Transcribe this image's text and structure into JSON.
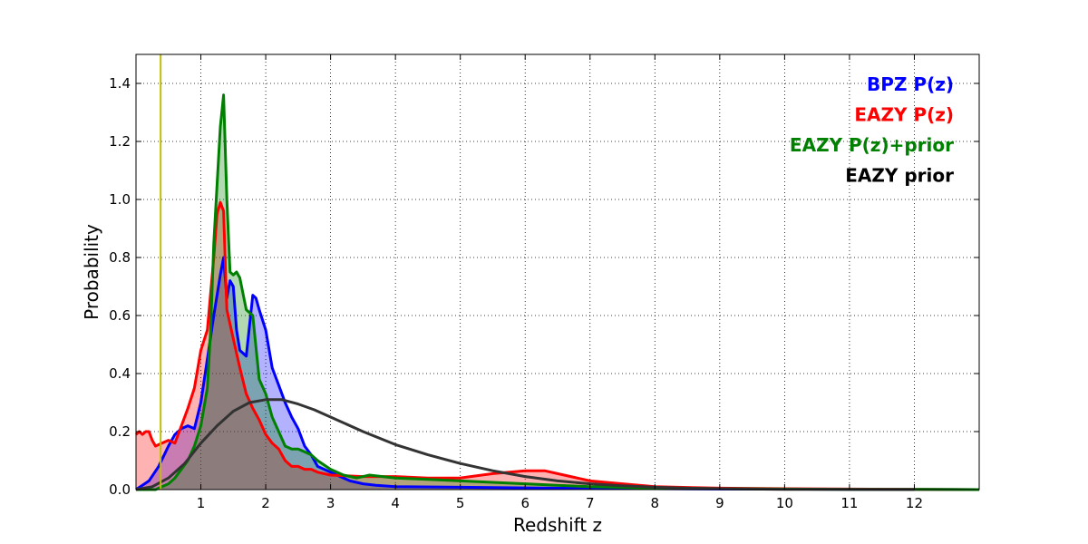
{
  "chart_data": {
    "type": "area",
    "xlabel": "Redshift z",
    "ylabel": "Probability",
    "xlim": [
      0,
      13
    ],
    "ylim": [
      0,
      1.5
    ],
    "x_ticks": [
      "1",
      "2",
      "3",
      "4",
      "5",
      "6",
      "7",
      "8",
      "9",
      "10",
      "11",
      "12"
    ],
    "y_ticks": [
      "0.0",
      "0.2",
      "0.4",
      "0.6",
      "0.8",
      "1.0",
      "1.2",
      "1.4"
    ],
    "grid": true,
    "legend_position": "top-right",
    "reference_line": {
      "x": 0.38,
      "color": "#bfbf00"
    },
    "series": [
      {
        "name": "BPZ P(z)",
        "color": "#0000ff",
        "fill": "#0000ff",
        "filled": true,
        "x": [
          0,
          0.2,
          0.35,
          0.5,
          0.6,
          0.7,
          0.8,
          0.9,
          1.0,
          1.1,
          1.2,
          1.3,
          1.35,
          1.4,
          1.45,
          1.5,
          1.55,
          1.6,
          1.7,
          1.8,
          1.85,
          1.9,
          2.0,
          2.1,
          2.2,
          2.3,
          2.4,
          2.5,
          2.6,
          2.7,
          2.8,
          2.9,
          3.0,
          3.1,
          3.2,
          3.3,
          3.5,
          3.7,
          4.0,
          5.0,
          6.0,
          7.0,
          8.0,
          9.0,
          10.0,
          11.0,
          12.0,
          13.0
        ],
        "y": [
          0,
          0.03,
          0.08,
          0.15,
          0.19,
          0.21,
          0.22,
          0.21,
          0.3,
          0.45,
          0.6,
          0.74,
          0.8,
          0.66,
          0.72,
          0.7,
          0.55,
          0.48,
          0.46,
          0.67,
          0.66,
          0.62,
          0.55,
          0.42,
          0.36,
          0.3,
          0.25,
          0.21,
          0.15,
          0.12,
          0.08,
          0.07,
          0.06,
          0.05,
          0.04,
          0.03,
          0.02,
          0.015,
          0.01,
          0.008,
          0.006,
          0.004,
          0.003,
          0.002,
          0.002,
          0.001,
          0.001,
          0.0
        ]
      },
      {
        "name": "EAZY P(z)",
        "color": "#ff0000",
        "fill": "#ff0000",
        "filled": true,
        "x": [
          0,
          0.05,
          0.1,
          0.15,
          0.2,
          0.25,
          0.3,
          0.4,
          0.5,
          0.6,
          0.7,
          0.8,
          0.9,
          1.0,
          1.1,
          1.2,
          1.25,
          1.3,
          1.35,
          1.4,
          1.5,
          1.6,
          1.7,
          1.8,
          1.9,
          2.0,
          2.1,
          2.2,
          2.3,
          2.4,
          2.5,
          2.6,
          2.7,
          2.8,
          3.0,
          3.5,
          4.0,
          4.5,
          5.0,
          5.5,
          6.0,
          6.3,
          6.6,
          7.0,
          7.5,
          8.0,
          9.0,
          10.0,
          11.0,
          12.0,
          13.0
        ],
        "y": [
          0.19,
          0.2,
          0.19,
          0.2,
          0.2,
          0.17,
          0.15,
          0.16,
          0.17,
          0.16,
          0.22,
          0.28,
          0.35,
          0.48,
          0.55,
          0.8,
          0.95,
          0.99,
          0.96,
          0.62,
          0.52,
          0.42,
          0.33,
          0.28,
          0.24,
          0.19,
          0.16,
          0.14,
          0.1,
          0.08,
          0.08,
          0.07,
          0.07,
          0.06,
          0.05,
          0.045,
          0.045,
          0.04,
          0.04,
          0.055,
          0.065,
          0.065,
          0.05,
          0.03,
          0.02,
          0.01,
          0.005,
          0.003,
          0.002,
          0.001,
          0.0
        ]
      },
      {
        "name": "EAZY P(z)+prior",
        "color": "#008000",
        "fill": "#008000",
        "filled": true,
        "x": [
          0,
          0.3,
          0.4,
          0.5,
          0.6,
          0.7,
          0.8,
          0.9,
          1.0,
          1.1,
          1.15,
          1.2,
          1.25,
          1.3,
          1.35,
          1.4,
          1.45,
          1.5,
          1.55,
          1.6,
          1.7,
          1.8,
          1.9,
          2.0,
          2.1,
          2.2,
          2.3,
          2.4,
          2.5,
          2.6,
          2.7,
          2.8,
          3.0,
          3.2,
          3.4,
          3.6,
          3.8,
          4.0,
          4.5,
          5.0,
          5.5,
          6.0,
          6.5,
          7.0,
          8.0,
          9.0,
          10.0,
          11.0,
          12.0,
          13.0
        ],
        "y": [
          0,
          0.0,
          0.01,
          0.02,
          0.04,
          0.07,
          0.1,
          0.15,
          0.22,
          0.35,
          0.55,
          0.85,
          1.05,
          1.25,
          1.36,
          1.0,
          0.75,
          0.74,
          0.75,
          0.73,
          0.62,
          0.6,
          0.38,
          0.33,
          0.25,
          0.2,
          0.15,
          0.14,
          0.14,
          0.13,
          0.12,
          0.1,
          0.07,
          0.05,
          0.04,
          0.05,
          0.045,
          0.04,
          0.035,
          0.03,
          0.025,
          0.02,
          0.015,
          0.01,
          0.005,
          0.003,
          0.002,
          0.001,
          0.001,
          0.0
        ]
      },
      {
        "name": "EAZY prior",
        "color": "#333333",
        "fill": null,
        "filled": false,
        "x": [
          0,
          0.25,
          0.5,
          0.75,
          1.0,
          1.25,
          1.5,
          1.75,
          2.0,
          2.25,
          2.5,
          2.75,
          3.0,
          3.5,
          4.0,
          4.5,
          5.0,
          5.5,
          6.0,
          6.5,
          7.0,
          7.5,
          8.0,
          8.5,
          9.0,
          9.5,
          10.0,
          11.0,
          12.0
        ],
        "y": [
          0,
          0.01,
          0.04,
          0.09,
          0.16,
          0.22,
          0.27,
          0.3,
          0.31,
          0.31,
          0.295,
          0.275,
          0.25,
          0.2,
          0.155,
          0.12,
          0.09,
          0.065,
          0.045,
          0.03,
          0.02,
          0.013,
          0.008,
          0.005,
          0.003,
          0.002,
          0.001,
          0.0005,
          0.0
        ]
      }
    ]
  }
}
